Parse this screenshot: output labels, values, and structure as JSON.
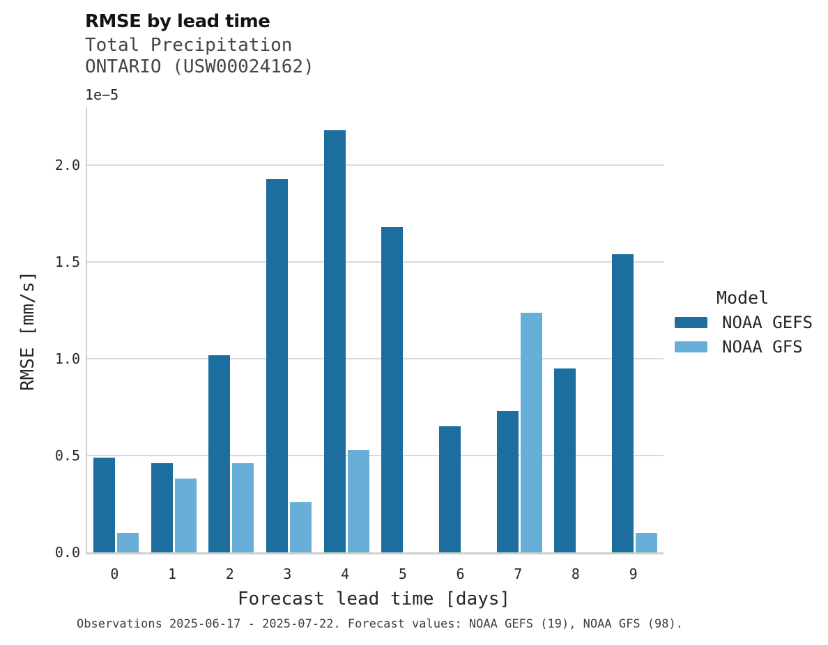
{
  "header": {
    "title": "RMSE by lead time",
    "subtitle_line1": "Total Precipitation",
    "subtitle_line2": "ONTARIO (USW00024162)"
  },
  "chart_data": {
    "type": "bar",
    "title": "RMSE by lead time",
    "subtitle": [
      "Total Precipitation",
      "ONTARIO (USW00024162)"
    ],
    "categories": [
      "0",
      "1",
      "2",
      "3",
      "4",
      "5",
      "6",
      "7",
      "8",
      "9"
    ],
    "series": [
      {
        "name": "NOAA GEFS",
        "color": "#1b6e9e",
        "values": [
          0.49,
          0.46,
          1.02,
          1.93,
          2.18,
          1.68,
          0.65,
          0.73,
          0.95,
          1.54
        ]
      },
      {
        "name": "NOAA GFS",
        "color": "#67afd8",
        "values": [
          0.1,
          0.38,
          0.46,
          0.26,
          0.53,
          null,
          null,
          1.24,
          null,
          0.1
        ]
      }
    ],
    "value_units_note": "bar values are in units of 1e-5 mm/s",
    "offset_label": "1e−5",
    "xlabel": "Forecast lead time [days]",
    "ylabel": "RMSE [mm/s]",
    "ylim": [
      0,
      2.3
    ],
    "yticks": [
      0.0,
      0.5,
      1.0,
      1.5,
      2.0
    ],
    "grid": true,
    "gridline_color": "#d9d9d9",
    "legend_position": "right"
  },
  "legend": {
    "title": "Model",
    "items": [
      {
        "label": "NOAA GEFS",
        "color": "#1b6e9e"
      },
      {
        "label": "NOAA GFS",
        "color": "#67afd8"
      }
    ]
  },
  "caption": "Observations 2025-06-17 - 2025-07-22. Forecast values: NOAA GEFS (19), NOAA GFS (98)."
}
